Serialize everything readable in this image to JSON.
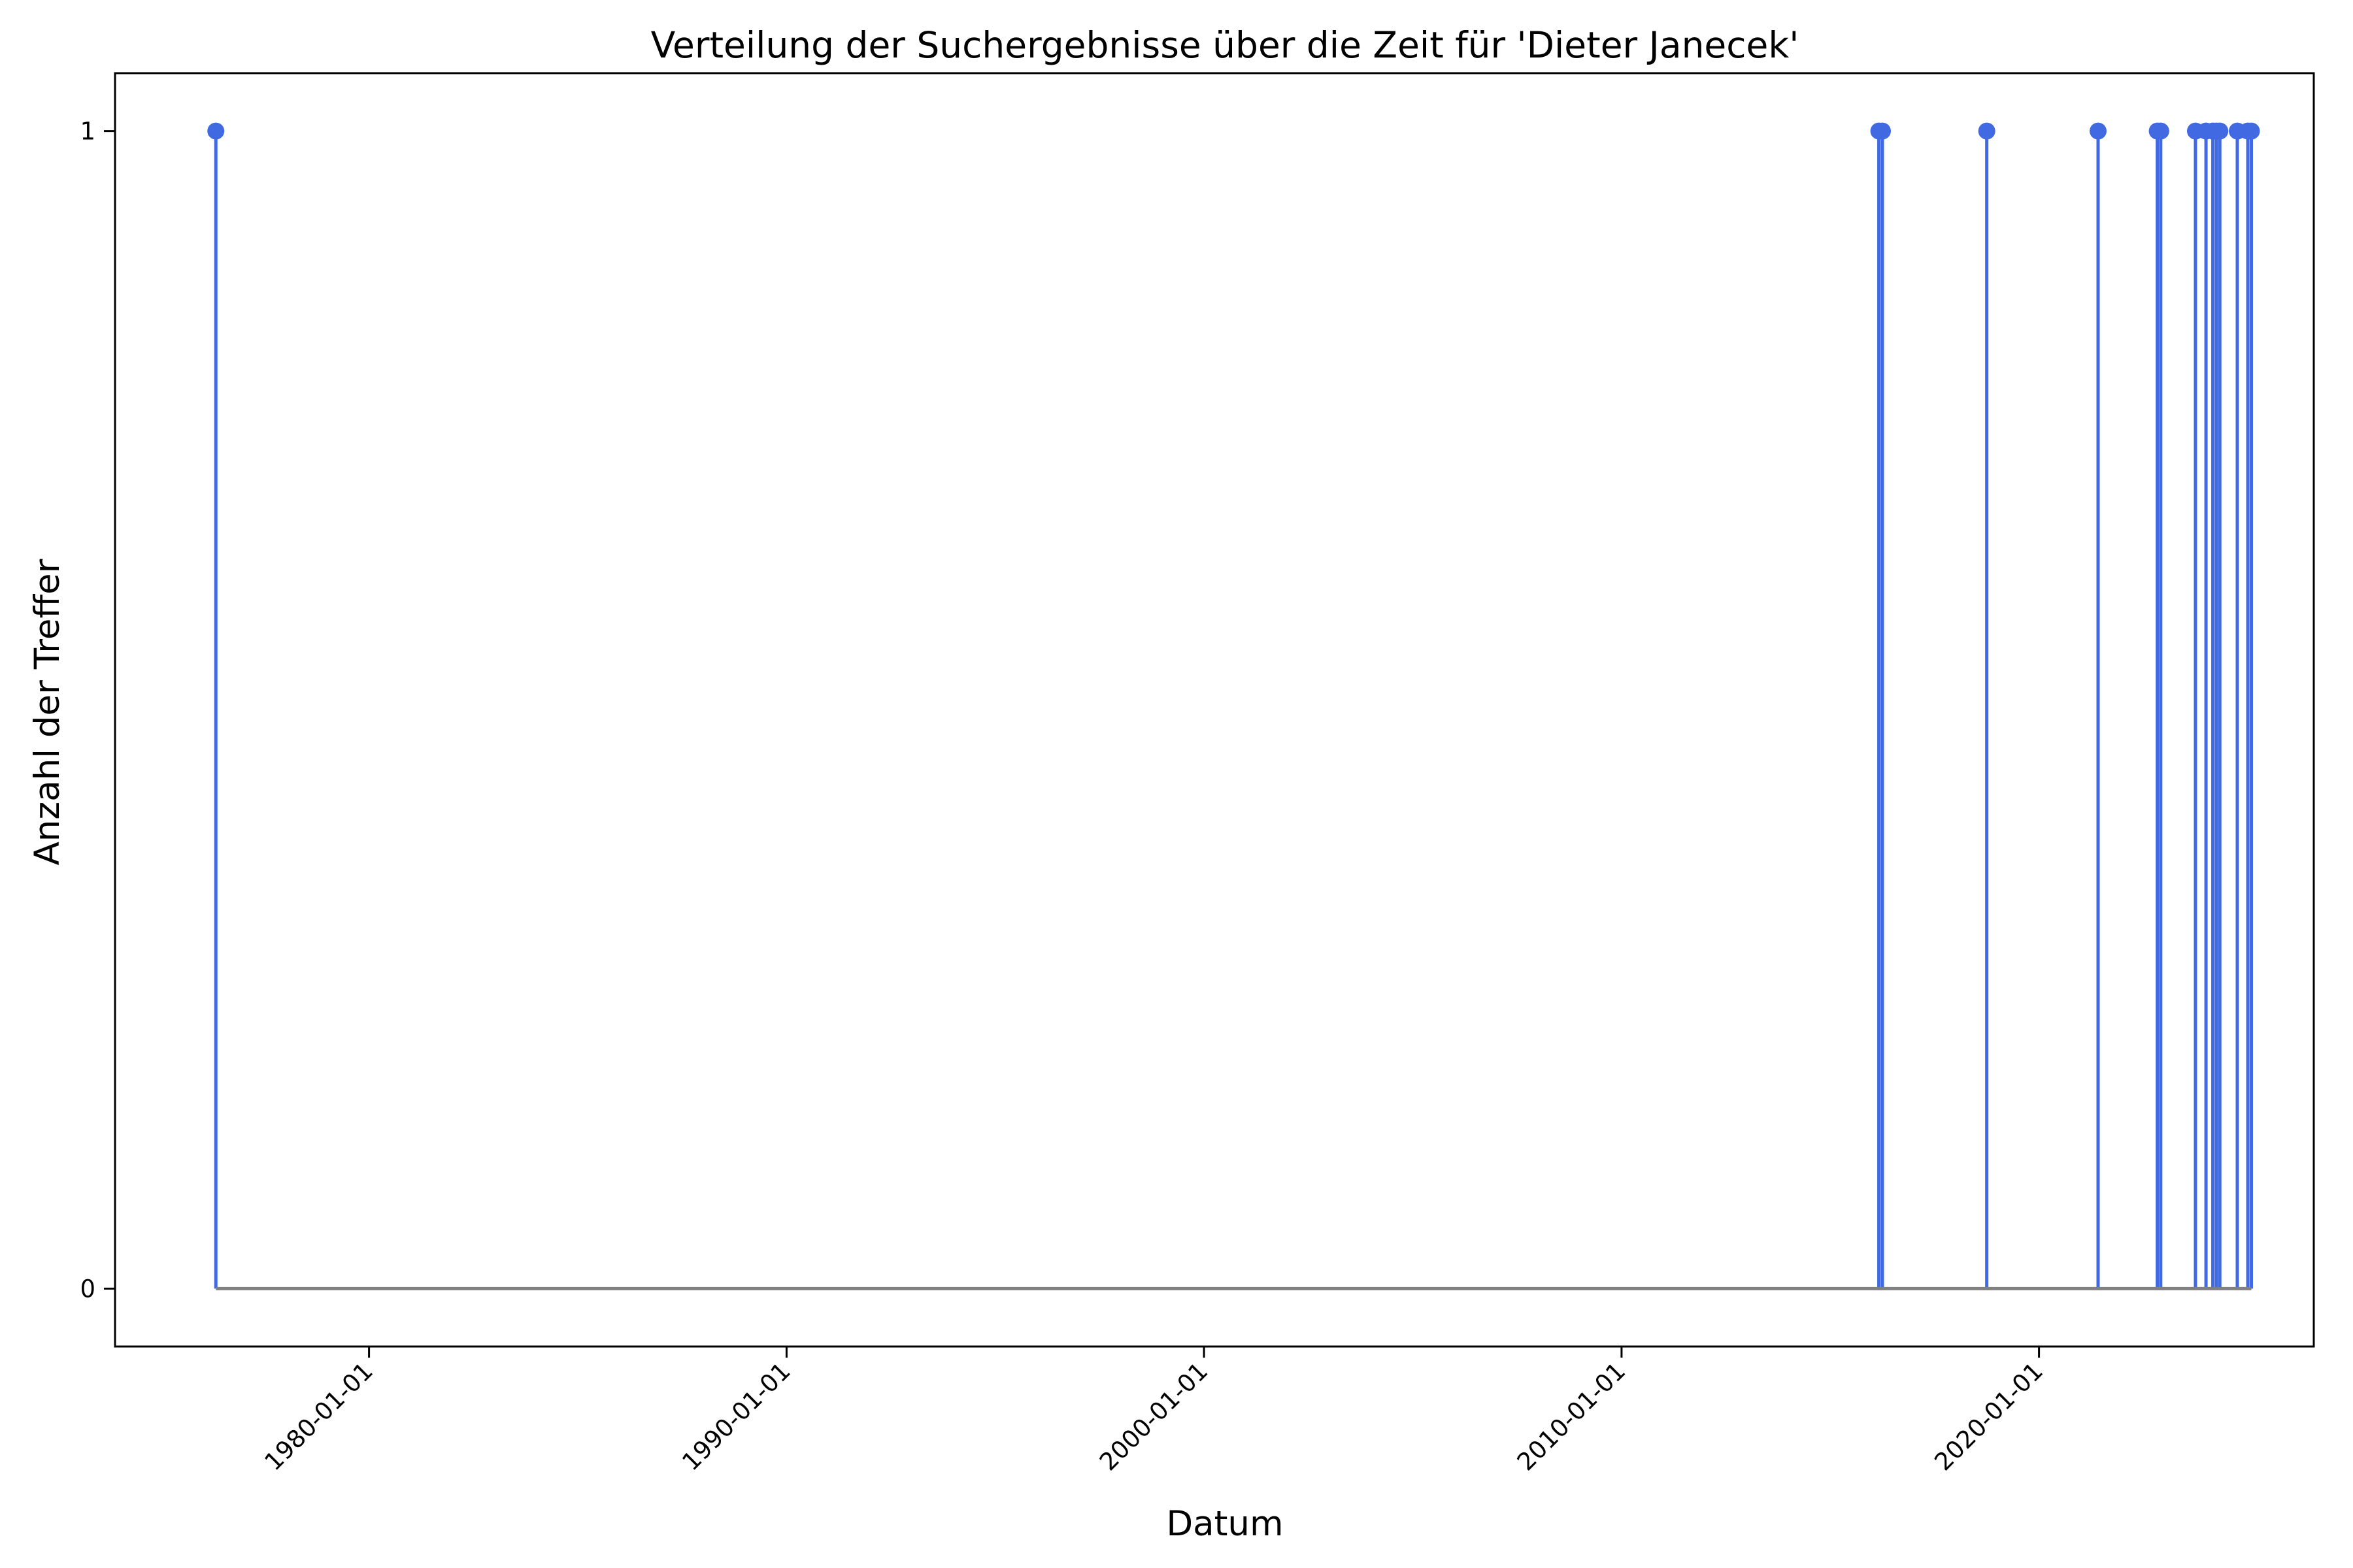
{
  "chart_data": {
    "type": "stem",
    "title": "Verteilung der Suchergebnisse über die Zeit für 'Dieter Janecek'",
    "xlabel": "Datum",
    "ylabel": "Anzahl der Treffer",
    "x_type": "date",
    "xlim": [
      "1973-12-01",
      "2026-08-01"
    ],
    "ylim": [
      -0.05,
      1.05
    ],
    "x_ticks": [
      "1980-01-01",
      "1990-01-01",
      "2000-01-01",
      "2010-01-01",
      "2020-01-01"
    ],
    "y_ticks": [
      0,
      1
    ],
    "grid": false,
    "legend": "none",
    "baseline": 0,
    "series": [
      {
        "x": [
          "1976-05-01",
          "2016-03-01",
          "2016-04-01",
          "2018-10-01",
          "2021-06-01",
          "2022-11-01",
          "2022-12-01",
          "2023-10-01",
          "2024-01-01",
          "2024-03-01",
          "2024-04-01",
          "2024-05-01",
          "2024-10-01",
          "2025-01-01",
          "2025-02-01"
        ],
        "values": [
          1,
          1,
          1,
          1,
          1,
          1,
          1,
          1,
          1,
          1,
          1,
          1,
          1,
          1,
          1
        ]
      }
    ],
    "colors": {
      "stem": "#4169e1",
      "marker": "#4169e1",
      "baseline": "#808080",
      "frame": "#000000"
    }
  }
}
